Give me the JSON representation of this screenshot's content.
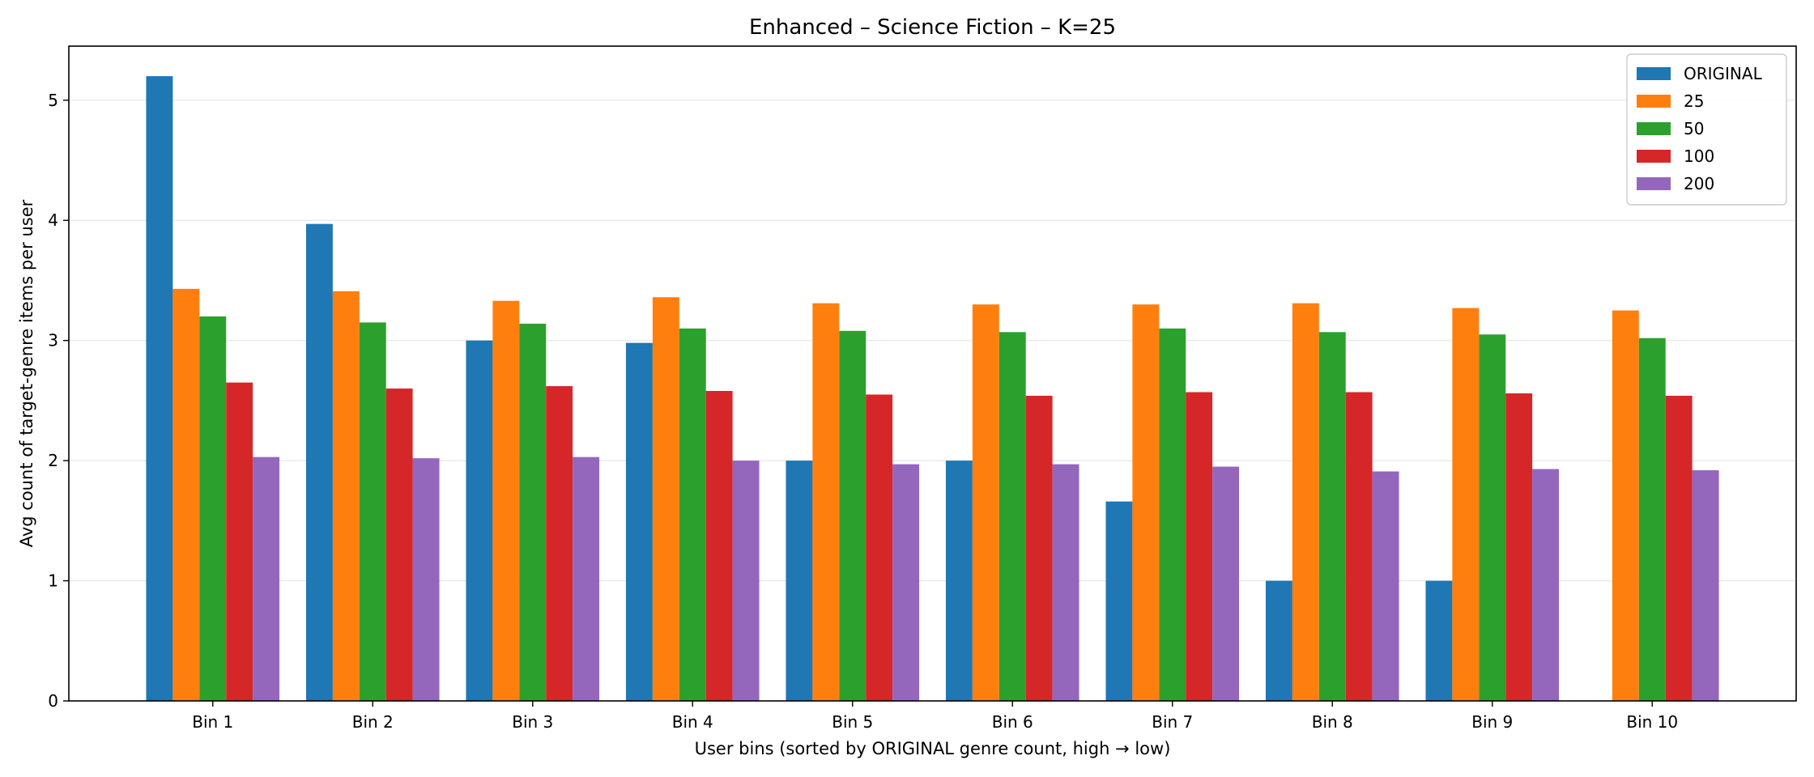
{
  "chart_data": {
    "type": "bar",
    "title": "Enhanced – Science Fiction – K=25",
    "xlabel": "User bins (sorted by ORIGINAL genre count, high → low)",
    "ylabel": "Avg count of target-genre items per user",
    "categories": [
      "Bin 1",
      "Bin 2",
      "Bin 3",
      "Bin 4",
      "Bin 5",
      "Bin 6",
      "Bin 7",
      "Bin 8",
      "Bin 9",
      "Bin 10"
    ],
    "ylim": [
      0,
      5.45
    ],
    "yticks": [
      0,
      1,
      2,
      3,
      4,
      5
    ],
    "grid": "horizontal",
    "legend_position": "top-right",
    "series": [
      {
        "name": "ORIGINAL",
        "color": "#1f77b4",
        "values": [
          5.2,
          3.97,
          3.0,
          2.98,
          2.0,
          2.0,
          1.66,
          1.0,
          1.0,
          0
        ]
      },
      {
        "name": "25",
        "color": "#ff7f0e",
        "values": [
          3.43,
          3.41,
          3.33,
          3.36,
          3.31,
          3.3,
          3.3,
          3.31,
          3.27,
          3.25
        ]
      },
      {
        "name": "50",
        "color": "#2ca02c",
        "values": [
          3.2,
          3.15,
          3.14,
          3.1,
          3.08,
          3.07,
          3.1,
          3.07,
          3.05,
          3.02
        ]
      },
      {
        "name": "100",
        "color": "#d62728",
        "values": [
          2.65,
          2.6,
          2.62,
          2.58,
          2.55,
          2.54,
          2.57,
          2.57,
          2.56,
          2.54
        ]
      },
      {
        "name": "200",
        "color": "#9467bd",
        "values": [
          2.03,
          2.02,
          2.03,
          2.0,
          1.97,
          1.97,
          1.95,
          1.91,
          1.93,
          1.92
        ]
      }
    ]
  }
}
